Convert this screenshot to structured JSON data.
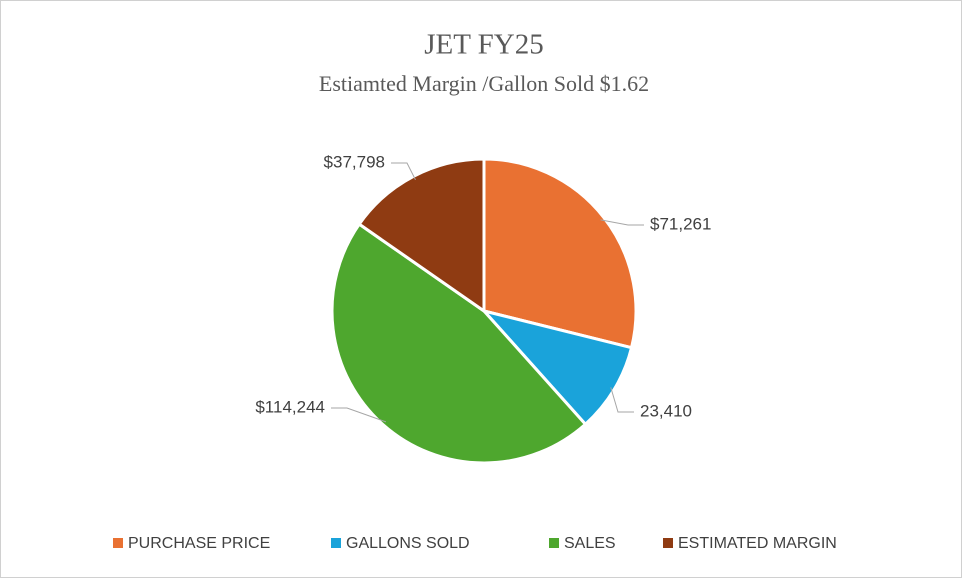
{
  "chart_data": {
    "type": "pie",
    "title": "JET FY25",
    "subtitle": "Estiamted Margin /Gallon Sold $1.62",
    "categories": [
      "PURCHASE PRICE",
      "GALLONS SOLD",
      "SALES",
      "ESTIMATED MARGIN"
    ],
    "values": [
      71261,
      23410,
      114244,
      37798
    ],
    "value_labels": [
      "$71,261",
      "23,410",
      "$114,244",
      "$37,798"
    ],
    "colors": [
      "#e97132",
      "#1aa3da",
      "#4ea72e",
      "#8f3b12"
    ],
    "legend": "bottom"
  }
}
